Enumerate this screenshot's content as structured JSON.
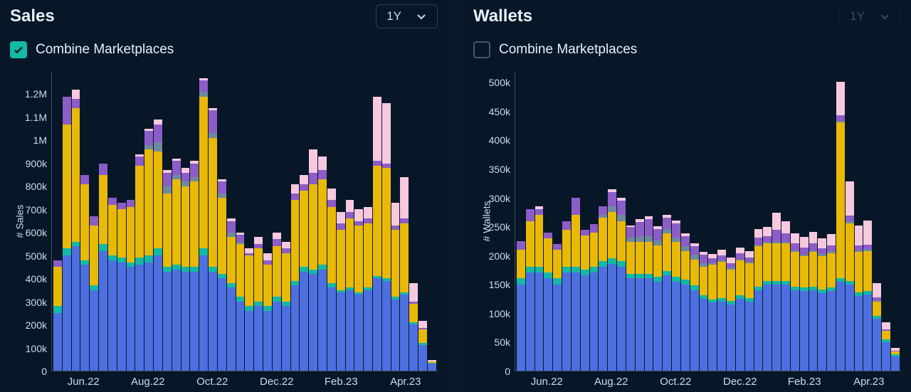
{
  "background_color": "#071728",
  "text_color": "#e8f0f7",
  "axis_color": "#35506a",
  "font_family": "system-ui",
  "series_colors": {
    "blue": "#4d6fe0",
    "teal": "#14b8a6",
    "yellow": "#e9b908",
    "grey": "#6e8aa0",
    "purple": "#8c5cc7",
    "pink": "#f6c9de"
  },
  "series_order": [
    "blue",
    "teal",
    "yellow",
    "grey",
    "purple",
    "pink"
  ],
  "panels": [
    {
      "id": "sales",
      "title": "Sales",
      "range_label": "1Y",
      "range_dim": false,
      "checkbox_label": "Combine Marketplaces",
      "checkbox_checked": true,
      "yaxis_label": "# Sales",
      "ymax": 1300000,
      "ytick_labels": [
        "1.2M",
        "1.1M",
        "1M",
        "900k",
        "800k",
        "700k",
        "600k",
        "500k",
        "400k",
        "300k",
        "200k",
        "100k",
        "0"
      ],
      "xtick_labels": [
        "Jun.22",
        "Aug.22",
        "Oct.22",
        "Dec.22",
        "Feb.23",
        "Apr.23"
      ],
      "chart_type": "stacked-bar",
      "bars": [
        {
          "blue": 250000,
          "teal": 30000,
          "yellow": 170000,
          "grey": 0,
          "purple": 30000,
          "pink": 0
        },
        {
          "blue": 500000,
          "teal": 30000,
          "yellow": 540000,
          "grey": 0,
          "purple": 120000,
          "pink": 0
        },
        {
          "blue": 540000,
          "teal": 20000,
          "yellow": 580000,
          "grey": 0,
          "purple": 40000,
          "pink": 40000
        },
        {
          "blue": 460000,
          "teal": 20000,
          "yellow": 330000,
          "grey": 0,
          "purple": 40000,
          "pink": 0
        },
        {
          "blue": 350000,
          "teal": 20000,
          "yellow": 260000,
          "grey": 0,
          "purple": 40000,
          "pink": 0
        },
        {
          "blue": 520000,
          "teal": 30000,
          "yellow": 300000,
          "grey": 0,
          "purple": 50000,
          "pink": 0
        },
        {
          "blue": 480000,
          "teal": 20000,
          "yellow": 220000,
          "grey": 0,
          "purple": 30000,
          "pink": 0
        },
        {
          "blue": 470000,
          "teal": 20000,
          "yellow": 210000,
          "grey": 0,
          "purple": 30000,
          "pink": 0
        },
        {
          "blue": 450000,
          "teal": 20000,
          "yellow": 240000,
          "grey": 0,
          "purple": 30000,
          "pink": 0
        },
        {
          "blue": 460000,
          "teal": 30000,
          "yellow": 400000,
          "grey": 0,
          "purple": 40000,
          "pink": 10000
        },
        {
          "blue": 470000,
          "teal": 30000,
          "yellow": 460000,
          "grey": 20000,
          "purple": 60000,
          "pink": 10000
        },
        {
          "blue": 500000,
          "teal": 30000,
          "yellow": 420000,
          "grey": 40000,
          "purple": 80000,
          "pink": 20000
        },
        {
          "blue": 430000,
          "teal": 20000,
          "yellow": 320000,
          "grey": 30000,
          "purple": 60000,
          "pink": 10000
        },
        {
          "blue": 440000,
          "teal": 20000,
          "yellow": 370000,
          "grey": 20000,
          "purple": 60000,
          "pink": 10000
        },
        {
          "blue": 430000,
          "teal": 20000,
          "yellow": 350000,
          "grey": 20000,
          "purple": 40000,
          "pink": 20000
        },
        {
          "blue": 430000,
          "teal": 20000,
          "yellow": 370000,
          "grey": 20000,
          "purple": 60000,
          "pink": 10000
        },
        {
          "blue": 500000,
          "teal": 30000,
          "yellow": 660000,
          "grey": 20000,
          "purple": 50000,
          "pink": 10000
        },
        {
          "blue": 430000,
          "teal": 20000,
          "yellow": 560000,
          "grey": 20000,
          "purple": 100000,
          "pink": 10000
        },
        {
          "blue": 400000,
          "teal": 20000,
          "yellow": 330000,
          "grey": 20000,
          "purple": 50000,
          "pink": 10000
        },
        {
          "blue": 360000,
          "teal": 20000,
          "yellow": 200000,
          "grey": 20000,
          "purple": 50000,
          "pink": 10000
        },
        {
          "blue": 300000,
          "teal": 20000,
          "yellow": 230000,
          "grey": 10000,
          "purple": 30000,
          "pink": 10000
        },
        {
          "blue": 260000,
          "teal": 20000,
          "yellow": 220000,
          "grey": 0,
          "purple": 10000,
          "pink": 20000
        },
        {
          "blue": 280000,
          "teal": 20000,
          "yellow": 230000,
          "grey": 0,
          "purple": 20000,
          "pink": 30000
        },
        {
          "blue": 260000,
          "teal": 20000,
          "yellow": 180000,
          "grey": 0,
          "purple": 20000,
          "pink": 30000
        },
        {
          "blue": 300000,
          "teal": 20000,
          "yellow": 220000,
          "grey": 0,
          "purple": 30000,
          "pink": 30000
        },
        {
          "blue": 280000,
          "teal": 20000,
          "yellow": 210000,
          "grey": 0,
          "purple": 20000,
          "pink": 30000
        },
        {
          "blue": 370000,
          "teal": 20000,
          "yellow": 350000,
          "grey": 0,
          "purple": 30000,
          "pink": 40000
        },
        {
          "blue": 430000,
          "teal": 20000,
          "yellow": 330000,
          "grey": 0,
          "purple": 30000,
          "pink": 40000
        },
        {
          "blue": 420000,
          "teal": 20000,
          "yellow": 370000,
          "grey": 0,
          "purple": 50000,
          "pink": 100000
        },
        {
          "blue": 440000,
          "teal": 20000,
          "yellow": 370000,
          "grey": 0,
          "purple": 40000,
          "pink": 60000
        },
        {
          "blue": 360000,
          "teal": 20000,
          "yellow": 330000,
          "grey": 0,
          "purple": 30000,
          "pink": 50000
        },
        {
          "blue": 340000,
          "teal": 10000,
          "yellow": 260000,
          "grey": 0,
          "purple": 30000,
          "pink": 50000
        },
        {
          "blue": 350000,
          "teal": 10000,
          "yellow": 300000,
          "grey": 0,
          "purple": 30000,
          "pink": 50000
        },
        {
          "blue": 330000,
          "teal": 10000,
          "yellow": 290000,
          "grey": 0,
          "purple": 20000,
          "pink": 50000
        },
        {
          "blue": 350000,
          "teal": 10000,
          "yellow": 280000,
          "grey": 0,
          "purple": 20000,
          "pink": 50000
        },
        {
          "blue": 400000,
          "teal": 10000,
          "yellow": 480000,
          "grey": 0,
          "purple": 20000,
          "pink": 280000
        },
        {
          "blue": 390000,
          "teal": 10000,
          "yellow": 480000,
          "grey": 0,
          "purple": 20000,
          "pink": 260000
        },
        {
          "blue": 310000,
          "teal": 10000,
          "yellow": 290000,
          "grey": 0,
          "purple": 20000,
          "pink": 100000
        },
        {
          "blue": 330000,
          "teal": 10000,
          "yellow": 300000,
          "grey": 0,
          "purple": 20000,
          "pink": 180000
        },
        {
          "blue": 200000,
          "teal": 10000,
          "yellow": 80000,
          "grey": 0,
          "purple": 10000,
          "pink": 80000
        },
        {
          "blue": 110000,
          "teal": 10000,
          "yellow": 60000,
          "grey": 0,
          "purple": 5000,
          "pink": 30000
        },
        {
          "blue": 30000,
          "teal": 5000,
          "yellow": 5000,
          "grey": 0,
          "purple": 0,
          "pink": 5000
        }
      ]
    },
    {
      "id": "wallets",
      "title": "Wallets",
      "range_label": "1Y",
      "range_dim": true,
      "checkbox_label": "Combine Marketplaces",
      "checkbox_checked": false,
      "yaxis_label": "# Wallets",
      "ymax": 520000,
      "ytick_labels": [
        "500k",
        "450k",
        "400k",
        "350k",
        "300k",
        "250k",
        "200k",
        "150k",
        "100k",
        "50k",
        "0"
      ],
      "xtick_labels": [
        "Jun.22",
        "Aug.22",
        "Oct.22",
        "Dec.22",
        "Feb.23",
        "Apr.23"
      ],
      "chart_type": "stacked-bar",
      "bars": [
        {
          "blue": 150000,
          "teal": 10000,
          "yellow": 50000,
          "grey": 0,
          "purple": 15000,
          "pink": 0
        },
        {
          "blue": 170000,
          "teal": 10000,
          "yellow": 80000,
          "grey": 0,
          "purple": 20000,
          "pink": 0
        },
        {
          "blue": 170000,
          "teal": 10000,
          "yellow": 90000,
          "grey": 0,
          "purple": 10000,
          "pink": 5000
        },
        {
          "blue": 160000,
          "teal": 10000,
          "yellow": 60000,
          "grey": 0,
          "purple": 10000,
          "pink": 0
        },
        {
          "blue": 150000,
          "teal": 10000,
          "yellow": 50000,
          "grey": 0,
          "purple": 10000,
          "pink": 0
        },
        {
          "blue": 170000,
          "teal": 10000,
          "yellow": 65000,
          "grey": 0,
          "purple": 15000,
          "pink": 0
        },
        {
          "blue": 170000,
          "teal": 10000,
          "yellow": 90000,
          "grey": 0,
          "purple": 30000,
          "pink": 0
        },
        {
          "blue": 165000,
          "teal": 10000,
          "yellow": 60000,
          "grey": 0,
          "purple": 10000,
          "pink": 0
        },
        {
          "blue": 170000,
          "teal": 10000,
          "yellow": 60000,
          "grey": 0,
          "purple": 15000,
          "pink": 0
        },
        {
          "blue": 180000,
          "teal": 10000,
          "yellow": 75000,
          "grey": 5000,
          "purple": 15000,
          "pink": 0
        },
        {
          "blue": 185000,
          "teal": 10000,
          "yellow": 80000,
          "grey": 10000,
          "purple": 25000,
          "pink": 5000
        },
        {
          "blue": 180000,
          "teal": 10000,
          "yellow": 70000,
          "grey": 10000,
          "purple": 25000,
          "pink": 5000
        },
        {
          "blue": 160000,
          "teal": 8000,
          "yellow": 55000,
          "grey": 8000,
          "purple": 18000,
          "pink": 3000
        },
        {
          "blue": 160000,
          "teal": 8000,
          "yellow": 55000,
          "grey": 10000,
          "purple": 25000,
          "pink": 5000
        },
        {
          "blue": 160000,
          "teal": 8000,
          "yellow": 55000,
          "grey": 10000,
          "purple": 30000,
          "pink": 5000
        },
        {
          "blue": 155000,
          "teal": 8000,
          "yellow": 55000,
          "grey": 8000,
          "purple": 20000,
          "pink": 5000
        },
        {
          "blue": 165000,
          "teal": 8000,
          "yellow": 65000,
          "grey": 8000,
          "purple": 20000,
          "pink": 5000
        },
        {
          "blue": 155000,
          "teal": 8000,
          "yellow": 60000,
          "grey": 8000,
          "purple": 25000,
          "pink": 5000
        },
        {
          "blue": 150000,
          "teal": 8000,
          "yellow": 50000,
          "grey": 8000,
          "purple": 18000,
          "pink": 5000
        },
        {
          "blue": 140000,
          "teal": 8000,
          "yellow": 45000,
          "grey": 8000,
          "purple": 15000,
          "pink": 5000
        },
        {
          "blue": 125000,
          "teal": 6000,
          "yellow": 50000,
          "grey": 5000,
          "purple": 15000,
          "pink": 5000
        },
        {
          "blue": 118000,
          "teal": 6000,
          "yellow": 60000,
          "grey": 3000,
          "purple": 8000,
          "pink": 8000
        },
        {
          "blue": 120000,
          "teal": 6000,
          "yellow": 63000,
          "grey": 3000,
          "purple": 8000,
          "pink": 10000
        },
        {
          "blue": 115000,
          "teal": 6000,
          "yellow": 55000,
          "grey": 3000,
          "purple": 8000,
          "pink": 10000
        },
        {
          "blue": 125000,
          "teal": 6000,
          "yellow": 60000,
          "grey": 3000,
          "purple": 10000,
          "pink": 10000
        },
        {
          "blue": 120000,
          "teal": 6000,
          "yellow": 60000,
          "grey": 3000,
          "purple": 8000,
          "pink": 10000
        },
        {
          "blue": 140000,
          "teal": 6000,
          "yellow": 70000,
          "grey": 3000,
          "purple": 12000,
          "pink": 15000
        },
        {
          "blue": 150000,
          "teal": 6000,
          "yellow": 65000,
          "grey": 3000,
          "purple": 10000,
          "pink": 15000
        },
        {
          "blue": 150000,
          "teal": 6000,
          "yellow": 65000,
          "grey": 3000,
          "purple": 20000,
          "pink": 30000
        },
        {
          "blue": 150000,
          "teal": 6000,
          "yellow": 65000,
          "grey": 3000,
          "purple": 15000,
          "pink": 20000
        },
        {
          "blue": 140000,
          "teal": 6000,
          "yellow": 60000,
          "grey": 3000,
          "purple": 12000,
          "pink": 18000
        },
        {
          "blue": 138000,
          "teal": 6000,
          "yellow": 55000,
          "grey": 3000,
          "purple": 12000,
          "pink": 18000
        },
        {
          "blue": 140000,
          "teal": 6000,
          "yellow": 60000,
          "grey": 3000,
          "purple": 12000,
          "pink": 20000
        },
        {
          "blue": 135000,
          "teal": 6000,
          "yellow": 58000,
          "grey": 3000,
          "purple": 10000,
          "pink": 18000
        },
        {
          "blue": 138000,
          "teal": 6000,
          "yellow": 60000,
          "grey": 3000,
          "purple": 10000,
          "pink": 20000
        },
        {
          "blue": 155000,
          "teal": 6000,
          "yellow": 270000,
          "grey": 3000,
          "purple": 10000,
          "pink": 58000
        },
        {
          "blue": 150000,
          "teal": 6000,
          "yellow": 100000,
          "grey": 3000,
          "purple": 10000,
          "pink": 60000
        },
        {
          "blue": 130000,
          "teal": 6000,
          "yellow": 70000,
          "grey": 3000,
          "purple": 8000,
          "pink": 35000
        },
        {
          "blue": 132000,
          "teal": 6000,
          "yellow": 70000,
          "grey": 3000,
          "purple": 8000,
          "pink": 42000
        },
        {
          "blue": 90000,
          "teal": 5000,
          "yellow": 25000,
          "grey": 2000,
          "purple": 5000,
          "pink": 25000
        },
        {
          "blue": 50000,
          "teal": 4000,
          "yellow": 15000,
          "grey": 0,
          "purple": 3000,
          "pink": 12000
        },
        {
          "blue": 25000,
          "teal": 3000,
          "yellow": 5000,
          "grey": 0,
          "purple": 2000,
          "pink": 5000
        }
      ]
    }
  ]
}
